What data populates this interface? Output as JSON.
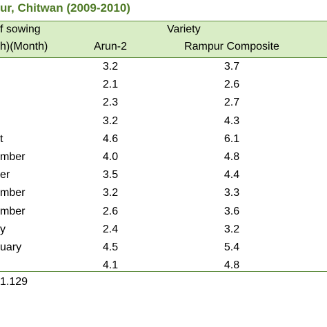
{
  "table": {
    "title": "ur, Chitwan (2009-2010)",
    "header": {
      "sowing_line1": "f sowing",
      "sowing_line2": "h)(Month)",
      "variety": "Variety",
      "arun": "Arun-2",
      "rampur": "Rampur Composite"
    },
    "rows": [
      {
        "month": "",
        "arun": "3.2",
        "rampur": "3.7"
      },
      {
        "month": "",
        "arun": "2.1",
        "rampur": "2.6"
      },
      {
        "month": "",
        "arun": "2.3",
        "rampur": "2.7"
      },
      {
        "month": "",
        "arun": "3.2",
        "rampur": "4.3"
      },
      {
        "month": "t",
        "arun": "4.6",
        "rampur": "6.1"
      },
      {
        "month": "mber",
        "arun": "4.0",
        "rampur": "4.8"
      },
      {
        "month": "er",
        "arun": "3.5",
        "rampur": "4.4"
      },
      {
        "month": "mber",
        "arun": "3.2",
        "rampur": "3.3"
      },
      {
        "month": "mber",
        "arun": "2.6",
        "rampur": "3.6"
      },
      {
        "month": "y",
        "arun": "2.4",
        "rampur": "3.2"
      },
      {
        "month": "uary",
        "arun": "4.5",
        "rampur": "5.4"
      },
      {
        "month": "",
        "arun": "4.1",
        "rampur": "4.8"
      }
    ],
    "footnote": "1.129",
    "colors": {
      "title": "#4e7a26",
      "header_band": "#d9edc6",
      "rule": "#5b8a3a"
    }
  }
}
